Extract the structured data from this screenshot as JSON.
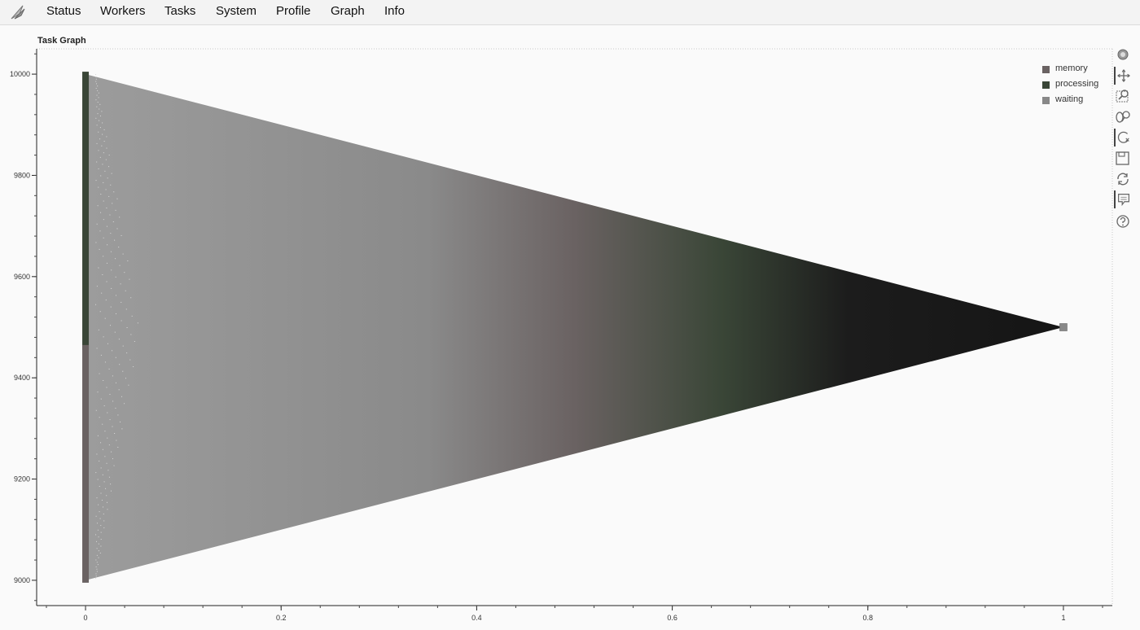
{
  "nav": {
    "items": [
      "Status",
      "Workers",
      "Tasks",
      "System",
      "Profile",
      "Graph",
      "Info"
    ]
  },
  "plot": {
    "title": "Task Graph"
  },
  "legend": {
    "items": [
      {
        "label": "memory",
        "color": "#6a6262"
      },
      {
        "label": "processing",
        "color": "#3a4637"
      },
      {
        "label": "waiting",
        "color": "#888888"
      }
    ]
  },
  "toolbar": {
    "tools": [
      "bokeh-logo-icon",
      "pan-icon",
      "box-zoom-icon",
      "wheel-zoom-icon",
      "reset-zoom-icon",
      "save-icon",
      "reset-icon",
      "hover-icon",
      "help-icon"
    ]
  },
  "chart_data": {
    "type": "scatter",
    "title": "Task Graph",
    "xlabel": "",
    "ylabel": "",
    "xlim": [
      -0.05,
      1.05
    ],
    "ylim": [
      8950,
      10050
    ],
    "x_ticks": [
      "0",
      "0.2",
      "0.4",
      "0.6",
      "0.8",
      "1"
    ],
    "y_ticks": [
      "9000",
      "9200",
      "9400",
      "9600",
      "9800",
      "10000"
    ],
    "series": [
      {
        "name": "processing",
        "x": 0,
        "y_range": [
          9460,
          10000
        ],
        "color": "#3a4637"
      },
      {
        "name": "memory",
        "x": 0,
        "y_range": [
          9000,
          9460
        ],
        "color": "#6a6262"
      },
      {
        "name": "waiting",
        "x": [
          1
        ],
        "y": [
          9500
        ],
        "color": "#888888"
      }
    ],
    "edges": {
      "from_x": 0,
      "from_y_range": [
        9000,
        10000
      ],
      "to_x": 1,
      "to_y": 9500
    },
    "edge_gradient": [
      "#9a9a9a",
      "#8a8a8a",
      "#6a6262",
      "#3a4637",
      "#1a1a1a"
    ],
    "legend_position": "top-right"
  }
}
